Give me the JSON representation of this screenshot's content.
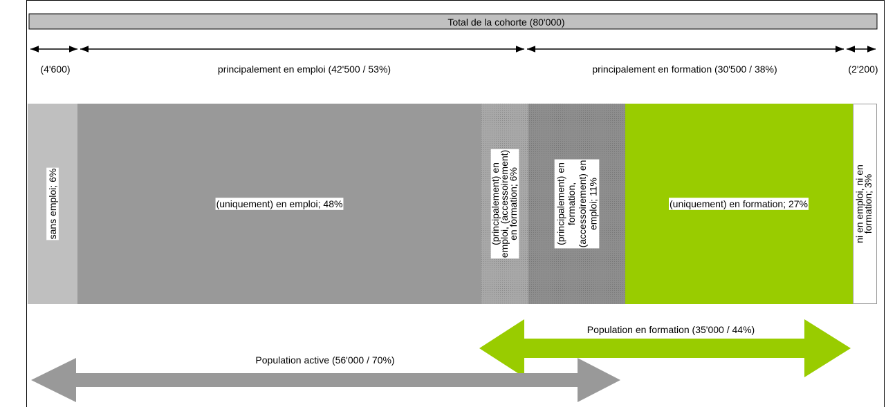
{
  "header": {
    "title": "Total de la cohorte (80'000)"
  },
  "brackets": [
    {
      "label": "(4'600)"
    },
    {
      "label": "principalement en emploi (42'500 / 53%)"
    },
    {
      "label": "principalement en formation (30'500 / 38%)"
    },
    {
      "label": "(2'200)"
    }
  ],
  "segments": [
    {
      "lines": [
        "sans emploi; 6%"
      ]
    },
    {
      "lines": [
        "(uniquement) en emploi; 48%"
      ]
    },
    {
      "lines": [
        "(principalement) en",
        "emploi, (accessoirement)",
        "en formation; 6%"
      ]
    },
    {
      "lines": [
        "(principalement) en",
        "formation,",
        "(accessoirement) en",
        "emploi; 11%"
      ]
    },
    {
      "lines": [
        "(uniquement) en formation; 27%"
      ]
    },
    {
      "lines": [
        "ni en emploi, ni en",
        "formation; 3%"
      ]
    }
  ],
  "populations": [
    {
      "label": "Population en formation (35'000 / 44%)"
    },
    {
      "label": "Population active (56'000 / 70%)"
    }
  ]
}
